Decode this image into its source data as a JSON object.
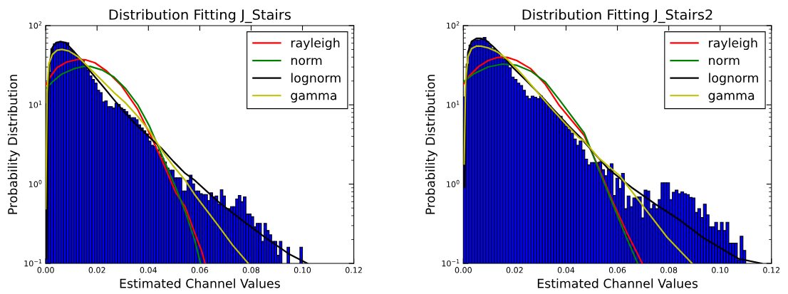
{
  "chart_data": [
    {
      "type": "histogram",
      "title": "Distribution Fitting J_Stairs",
      "xlabel": "Estimated Channel Values",
      "ylabel": "Probability Distribution",
      "log": true,
      "legend": "top right",
      "xlim": [
        0,
        0.12
      ],
      "ylim": [
        0.1,
        100
      ],
      "xticks": [
        {
          "value": 0,
          "label": "0.00"
        },
        {
          "value": 0.02,
          "label": "0.02"
        },
        {
          "value": 0.04,
          "label": "0.04"
        },
        {
          "value": 0.06,
          "label": "0.06"
        },
        {
          "value": 0.08,
          "label": "0.08"
        },
        {
          "value": 0.1,
          "label": "0.10"
        },
        {
          "value": 0.12,
          "label": "0.12"
        }
      ],
      "yticks": [
        {
          "value": 0.1,
          "label": "10$^{−1}$"
        },
        {
          "value": 1,
          "label": "10$^{0}$"
        },
        {
          "value": 10,
          "label": "10$^{1}$"
        },
        {
          "value": 100,
          "label": "10$^{2}$"
        }
      ],
      "bins": [
        0,
        0.001,
        0.002,
        0.003,
        0.004,
        0.005,
        0.006,
        0.007,
        0.008,
        0.009,
        0.01,
        0.011,
        0.012,
        0.013,
        0.014,
        0.015,
        0.016,
        0.017,
        0.018,
        0.019,
        0.02,
        0.021,
        0.022,
        0.023,
        0.024,
        0.025,
        0.026,
        0.027,
        0.028,
        0.029,
        0.03,
        0.031,
        0.032,
        0.033,
        0.034,
        0.035,
        0.036,
        0.037,
        0.038,
        0.039,
        0.04,
        0.041,
        0.042,
        0.043,
        0.044,
        0.045,
        0.046,
        0.047,
        0.048,
        0.049,
        0.05,
        0.051,
        0.052,
        0.053,
        0.054,
        0.055,
        0.056,
        0.057,
        0.058,
        0.059,
        0.06,
        0.061,
        0.062,
        0.063,
        0.064,
        0.065,
        0.066,
        0.067,
        0.068,
        0.069,
        0.07,
        0.071,
        0.072,
        0.073,
        0.074,
        0.075,
        0.076,
        0.077,
        0.078,
        0.079,
        0.08,
        0.081,
        0.082,
        0.083,
        0.084,
        0.085,
        0.086,
        0.087,
        0.088,
        0.089,
        0.09,
        0.091,
        0.092,
        0.093,
        0.094,
        0.095,
        0.096,
        0.097,
        0.098,
        0.099,
        0.1
      ],
      "series": [
        {
          "color": "#0000ff",
          "values": [
            10.3,
            25.7,
            51,
            58.8,
            61.7,
            61.7,
            61.9,
            61.7,
            60.8,
            51,
            47.8,
            43.1,
            40.2,
            37.6,
            36.3,
            31.6,
            27.5,
            23.2,
            20.9,
            18.8,
            15.3,
            14.3,
            10.9,
            11.2,
            9.5,
            9.5,
            9.1,
            10.5,
            10.1,
            9.1,
            8.8,
            8.2,
            7.4,
            6.9,
            6.9,
            6.5,
            5.6,
            5.1,
            4.7,
            4.3,
            3.5,
            3.1,
            3.0,
            2.7,
            2.4,
            2.1,
            1.9,
            1.6,
            1.5,
            1.5,
            1.2,
            1.2,
            1.2,
            0.82,
            0.82,
            1.12,
            1.3,
            1.01,
            0.82,
            0.82,
            0.76,
            0.74,
            0.74,
            0.62,
            0.78,
            0.69,
            0.71,
            0.56,
            0.85,
            0.71,
            0.49,
            0.49,
            0.52,
            0.52,
            0.65,
            0.72,
            0.6,
            0.69,
            0.42,
            0.42,
            0.39,
            0.29,
            0.32,
            0.32,
            0.19,
            0.32,
            0.26,
            0.23,
            0.19,
            0.19,
            0.127,
            0.19,
            null,
            null,
            0.16,
            null,
            null,
            null,
            null,
            0.16
          ]
        },
        {
          "type": "line",
          "name": "rayleigh",
          "color": "#ff0000",
          "x": [
            0,
            0.0017,
            0.0044,
            0.0081,
            0.0127,
            0.0155,
            0.0192,
            0.0238,
            0.0294,
            0.0358,
            0.0404,
            0.0451,
            0.0506,
            0.0543,
            0.058,
            0.0608,
            0.0621
          ],
          "values": [
            17.6,
            22.4,
            29.5,
            34.6,
            37.6,
            37,
            33.9,
            26.6,
            17.6,
            8.8,
            4.4,
            2.07,
            0.79,
            0.52,
            0.244,
            0.141,
            0.1
          ]
        },
        {
          "type": "line",
          "name": "norm",
          "color": "#008000",
          "x": [
            0,
            0.0026,
            0.0063,
            0.0109,
            0.0146,
            0.0174,
            0.022,
            0.0266,
            0.0312,
            0.0358,
            0.0404,
            0.0451,
            0.0506,
            0.0543,
            0.058,
            0.0603
          ],
          "values": [
            15.9,
            19.5,
            24.5,
            28.5,
            30.5,
            30.5,
            27.5,
            22.4,
            15.9,
            10.1,
            5.4,
            2.38,
            0.91,
            0.455,
            0.199,
            0.1
          ]
        },
        {
          "type": "line",
          "name": "lognorm",
          "color": "#000000",
          "x": [
            0.0003,
            0.0007,
            0.0015,
            0.0026,
            0.004,
            0.0058,
            0.0077,
            0.01,
            0.0137,
            0.0173,
            0.022,
            0.0266,
            0.0312,
            0.0358,
            0.0404,
            0.0451,
            0.0497,
            0.0543,
            0.058,
            0.0672,
            0.0765,
            0.0857,
            0.095,
            0.1019
          ],
          "values": [
            0.115,
            7.2,
            32.7,
            53,
            60.8,
            63,
            60.8,
            51,
            37.6,
            26.6,
            17.6,
            11.6,
            7.7,
            5.4,
            3.9,
            2.83,
            1.94,
            1.37,
            1.12,
            0.6,
            0.35,
            0.21,
            0.13,
            0.1
          ]
        },
        {
          "type": "line",
          "name": "gamma",
          "color": "#bfbf00",
          "x": [
            0,
            0.00055,
            0.0012,
            0.0026,
            0.0044,
            0.0063,
            0.009,
            0.0127,
            0.0173,
            0.022,
            0.0266,
            0.0312,
            0.0358,
            0.0404,
            0.0451,
            0.0497,
            0.0543,
            0.058,
            0.0672,
            0.0728,
            0.0789
          ],
          "values": [
            0.49,
            14.3,
            32.7,
            43.1,
            48.8,
            50.1,
            47.8,
            40.2,
            28.5,
            20.2,
            14.3,
            10.5,
            7.2,
            4.7,
            2.7,
            1.69,
            1.12,
            0.74,
            0.3,
            0.17,
            0.1
          ]
        }
      ]
    },
    {
      "type": "histogram",
      "title": "Distribution Fitting J_Stairs2",
      "xlabel": "Estimated Channel Values",
      "ylabel": "Probability Distribution",
      "log": true,
      "legend": "top right",
      "xlim": [
        0,
        0.12
      ],
      "ylim": [
        0.1,
        100
      ],
      "xticks": [
        {
          "value": 0,
          "label": "0.00"
        },
        {
          "value": 0.02,
          "label": "0.02"
        },
        {
          "value": 0.04,
          "label": "0.04"
        },
        {
          "value": 0.06,
          "label": "0.06"
        },
        {
          "value": 0.08,
          "label": "0.08"
        },
        {
          "value": 0.1,
          "label": "0.10"
        },
        {
          "value": 0.12,
          "label": "0.12"
        }
      ],
      "yticks": [
        {
          "value": 0.1,
          "label": "10$^{−1}$"
        },
        {
          "value": 1,
          "label": "10$^{0}$"
        },
        {
          "value": 10,
          "label": "10$^{1}$"
        },
        {
          "value": 100,
          "label": "10$^{2}$"
        }
      ],
      "bins": [
        0,
        0.0011,
        0.0022,
        0.0033,
        0.0044,
        0.0055,
        0.0066,
        0.0077,
        0.0088,
        0.0099,
        0.011,
        0.0121,
        0.0132,
        0.0143,
        0.0154,
        0.0165,
        0.0176,
        0.0187,
        0.0198,
        0.0209,
        0.022,
        0.0231,
        0.0242,
        0.0253,
        0.0264,
        0.0275,
        0.0286,
        0.0297,
        0.0308,
        0.0319,
        0.033,
        0.0341,
        0.0352,
        0.0363,
        0.0374,
        0.0385,
        0.0396,
        0.0407,
        0.0418,
        0.0429,
        0.044,
        0.0451,
        0.0462,
        0.0473,
        0.0484,
        0.0495,
        0.0506,
        0.0517,
        0.0528,
        0.0539,
        0.055,
        0.0561,
        0.0572,
        0.0583,
        0.0594,
        0.0605,
        0.0616,
        0.0627,
        0.0638,
        0.0649,
        0.066,
        0.0671,
        0.0682,
        0.0693,
        0.0704,
        0.0715,
        0.0726,
        0.0737,
        0.0748,
        0.0759,
        0.077,
        0.0781,
        0.0792,
        0.0803,
        0.0814,
        0.0825,
        0.0836,
        0.0847,
        0.0858,
        0.0869,
        0.088,
        0.0891,
        0.0902,
        0.0913,
        0.0924,
        0.0935,
        0.0946,
        0.0957,
        0.0968,
        0.0979,
        0.099,
        0.1001,
        0.1012,
        0.1023,
        0.1034,
        0.1045,
        0.1056,
        0.1067,
        0.1078,
        0.1089,
        0.11
      ],
      "series": [
        {
          "color": "#0000ff",
          "values": [
            12.6,
            32.7,
            56.8,
            63,
            66,
            66,
            67.5,
            70.8,
            63,
            56.8,
            51.2,
            47.8,
            44.6,
            40.2,
            37.6,
            35.1,
            29.5,
            22.4,
            20.9,
            18.8,
            17.6,
            15.3,
            12.9,
            12.0,
            12.9,
            12.5,
            12.0,
            12.9,
            11.6,
            10.5,
            9.8,
            8.8,
            8.0,
            7.4,
            7.2,
            6.25,
            5.4,
            4.9,
            4.4,
            3.7,
            3.1,
            3.5,
            2.7,
            2.07,
            1.75,
            1.87,
            1.87,
            1.87,
            1.91,
            1.52,
            1.28,
            1.52,
            1.81,
            0.72,
            1.19,
            0.88,
            1.37,
            0.49,
            0.71,
            0.52,
            0.67,
            0.69,
            0.69,
            0.375,
            0.84,
            0.82,
            0.49,
            0.56,
            0.49,
            0.64,
            1.04,
            1.04,
            1.04,
            0.64,
            0.79,
            0.84,
            0.76,
            0.8,
            0.76,
            0.74,
            0.68,
            0.67,
            0.44,
            0.49,
            0.38,
            0.56,
            0.41,
            0.29,
            0.29,
            0.33,
            0.26,
            0.33,
            0.26,
            0.33,
            0.18,
            0.18,
            0.18,
            0.111,
            0.22,
            0.146
          ]
        },
        {
          "type": "line",
          "name": "rayleigh",
          "color": "#ff0000",
          "x": [
            0,
            0.0023,
            0.006,
            0.0097,
            0.0134,
            0.0171,
            0.0208,
            0.0263,
            0.0319,
            0.0374,
            0.0471,
            0.0526,
            0.0582,
            0.0637,
            0.0674,
            0.0697
          ],
          "values": [
            18.2,
            23.2,
            30.5,
            36.3,
            39.7,
            39.7,
            36.3,
            28.5,
            18.2,
            9.8,
            4.1,
            1.65,
            0.6,
            0.244,
            0.141,
            0.1
          ]
        },
        {
          "type": "line",
          "name": "norm",
          "color": "#008000",
          "x": [
            0,
            0.0042,
            0.0097,
            0.0152,
            0.0208,
            0.0263,
            0.0319,
            0.0374,
            0.0471,
            0.0526,
            0.0582,
            0.0637,
            0.0679
          ],
          "values": [
            19.5,
            24.8,
            30.1,
            32.7,
            31.6,
            26.6,
            19.5,
            11.6,
            4.4,
            1.57,
            0.56,
            0.206,
            0.1
          ]
        },
        {
          "type": "line",
          "name": "lognorm",
          "color": "#000000",
          "x": [
            0.0005,
            0.0009,
            0.0018,
            0.0032,
            0.0051,
            0.0069,
            0.0088,
            0.0115,
            0.0152,
            0.0189,
            0.0245,
            0.03,
            0.0355,
            0.0411,
            0.0466,
            0.0471,
            0.0563,
            0.0655,
            0.0748,
            0.084,
            0.0932,
            0.1025,
            0.1071,
            0.1162
          ],
          "values": [
            0.91,
            14.3,
            46.2,
            63,
            68.9,
            68.9,
            65.2,
            54.8,
            41.7,
            30.5,
            20.2,
            13.3,
            8.5,
            5.4,
            3.6,
            3.4,
            1.57,
            0.91,
            0.56,
            0.357,
            0.213,
            0.141,
            0.115,
            0.1
          ]
        },
        {
          "type": "line",
          "name": "gamma",
          "color": "#bfbf00",
          "x": [
            0.0003,
            0.0009,
            0.0018,
            0.0032,
            0.0051,
            0.0069,
            0.0097,
            0.0134,
            0.0171,
            0.0226,
            0.0282,
            0.0337,
            0.0393,
            0.0448,
            0.0471,
            0.0526,
            0.0609,
            0.0702,
            0.0794,
            0.0891
          ],
          "values": [
            1.8,
            20.2,
            40.2,
            51.2,
            55.2,
            54.9,
            52.3,
            46.2,
            37.6,
            24.8,
            15.3,
            9.5,
            6.0,
            3.9,
            3.5,
            2.15,
            1.28,
            0.52,
            0.213,
            0.1
          ]
        }
      ]
    }
  ]
}
